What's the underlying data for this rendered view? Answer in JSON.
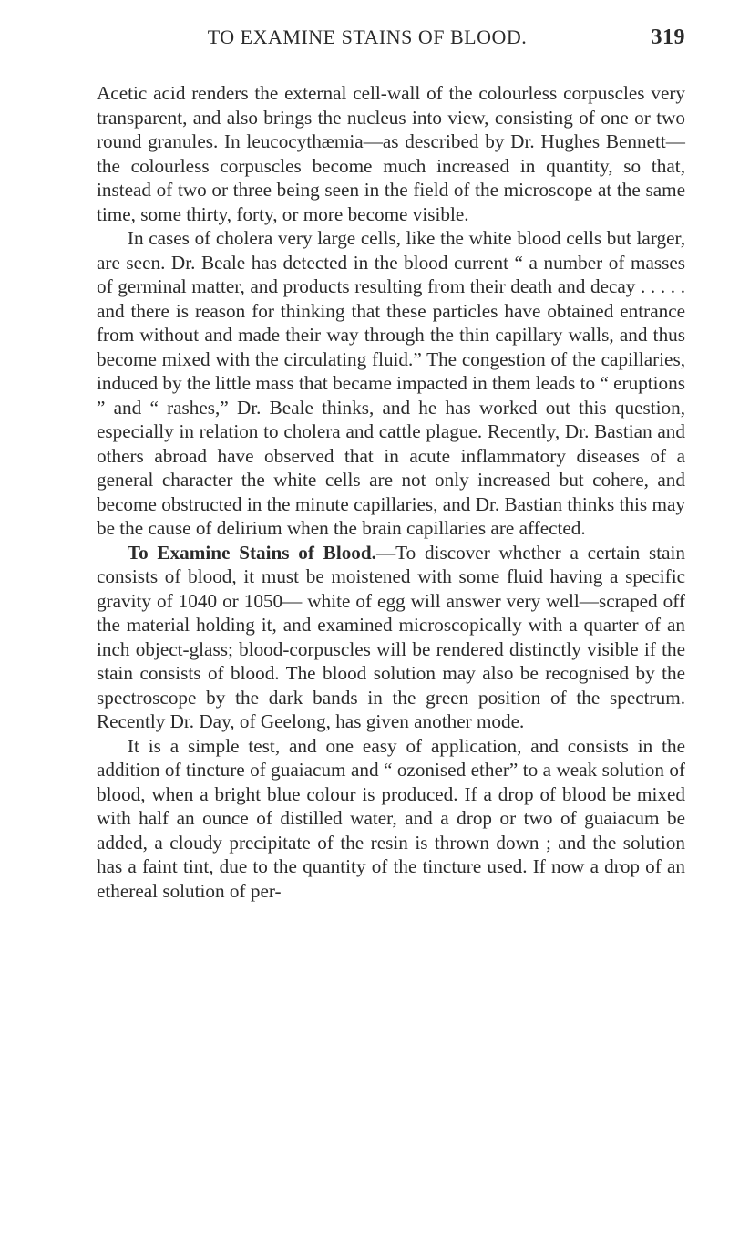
{
  "header": {
    "title": "TO EXAMINE STAINS OF BLOOD.",
    "page_number": "319"
  },
  "body": {
    "p1": "Acetic acid renders the external cell-wall of the colourless corpuscles very transparent, and also brings the nucleus into view, consisting of one or two round granules. In leucocythæmia—as described by Dr. Hughes Bennett—the colourless corpuscles become much increased in quantity, so that, instead of two or three being seen in the field of the microscope at the same time, some thirty, forty, or more become visible.",
    "p2": "In cases of cholera very large cells, like the white blood cells but larger, are seen. Dr. Beale has detected in the blood current “ a number of masses of germinal matter, and products resulting from their death and decay . . . . . and there is reason for thinking that these particles have obtained entrance from without and made their way through the thin capillary walls, and thus become mixed with the circulating fluid.” The congestion of the capillaries, induced by the little mass that became impacted in them leads to “ eruptions ” and “ rashes,” Dr. Beale thinks, and he has worked out this question, especially in relation to cholera and cattle plague. Recently, Dr. Bastian and others abroad have observed that in acute inflammatory diseases of a general character the white cells are not only increased but cohere, and become obstructed in the minute capillaries, and Dr. Bastian thinks this may be the cause of delirium when the brain capillaries are affected.",
    "p3_lead": "To Examine Stains of Blood.",
    "p3_rest": "—To discover whether a certain stain consists of blood, it must be moistened with some fluid having a specific gravity of 1040 or 1050— white of egg will answer very well—scraped off the material holding it, and examined microscopically with a quarter of an inch object-glass; blood-corpuscles will be rendered distinctly visible if the stain consists of blood. The blood solution may also be recognised by the spectroscope by the dark bands in the green position of the spectrum. Recently Dr. Day, of Geelong, has given another mode.",
    "p4": "It is a simple test, and one easy of application, and consists in the addition of tincture of guaiacum and “ ozonised ether” to a weak solution of blood, when a bright blue colour is produced. If a drop of blood be mixed with half an ounce of distilled water, and a drop or two of guaiacum be added, a cloudy precipitate of the resin is thrown down ; and the solution has a faint tint, due to the quantity of the tincture used. If now a drop of an ethereal solution of per-"
  }
}
